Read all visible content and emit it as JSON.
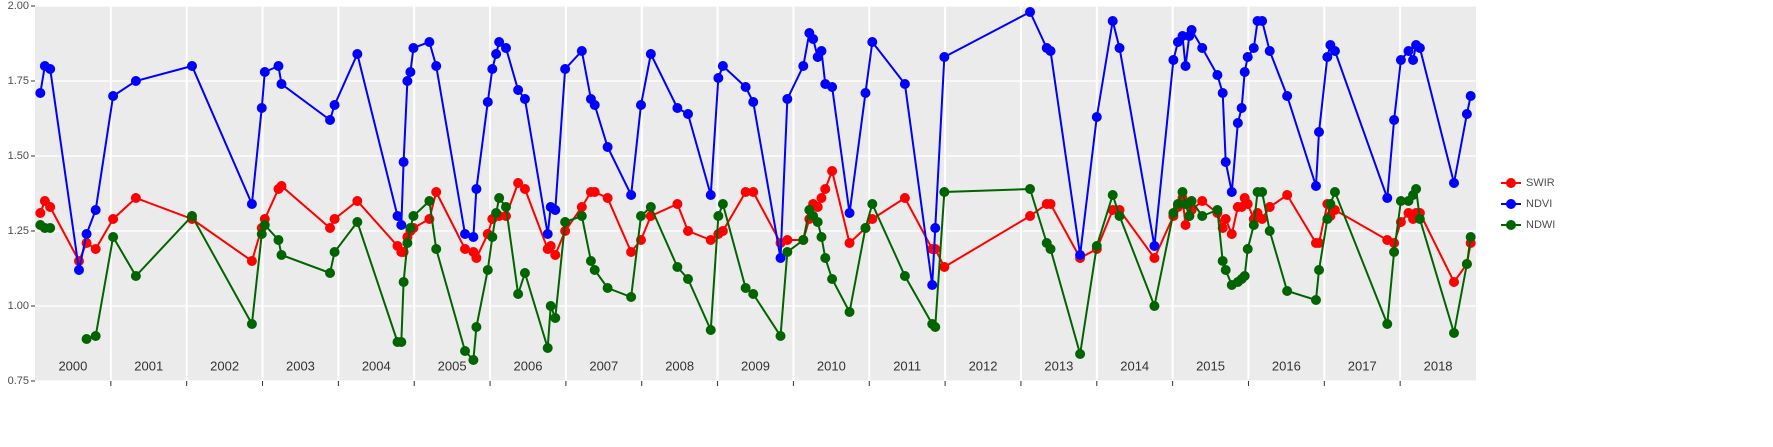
{
  "chart_data": {
    "type": "line",
    "x": [
      2000.07,
      2000.13,
      2000.2,
      2000.58,
      2000.68,
      2000.8,
      2001.03,
      2001.33,
      2002.07,
      2002.86,
      2002.99,
      2003.03,
      2003.21,
      2003.25,
      2003.89,
      2003.95,
      2004.25,
      2004.78,
      2004.83,
      2004.86,
      2004.91,
      2004.95,
      2004.99,
      2005.2,
      2005.29,
      2005.67,
      2005.78,
      2005.82,
      2005.97,
      2006.03,
      2006.08,
      2006.12,
      2006.21,
      2006.37,
      2006.46,
      2006.76,
      2006.8,
      2006.86,
      2006.99,
      2007.21,
      2007.33,
      2007.38,
      2007.55,
      2007.86,
      2007.99,
      2008.12,
      2008.47,
      2008.61,
      2008.91,
      2009.01,
      2009.07,
      2009.37,
      2009.47,
      2009.83,
      2009.92,
      2010.13,
      2010.21,
      2010.26,
      2010.32,
      2010.37,
      2010.42,
      2010.51,
      2010.74,
      2010.95,
      2011.04,
      2011.47,
      2011.83,
      2011.87,
      2011.99,
      2013.12,
      2013.34,
      2013.39,
      2013.78,
      2014.0,
      2014.21,
      2014.3,
      2014.76,
      2015.01,
      2015.07,
      2015.13,
      2015.17,
      2015.22,
      2015.25,
      2015.39,
      2015.59,
      2015.66,
      2015.7,
      2015.78,
      2015.86,
      2015.91,
      2015.95,
      2015.99,
      2016.07,
      2016.12,
      2016.18,
      2016.28,
      2016.51,
      2016.89,
      2016.93,
      2017.04,
      2017.08,
      2017.14,
      2017.83,
      2017.92,
      2018.01,
      2018.11,
      2018.17,
      2018.21,
      2018.26,
      2018.71,
      2018.88,
      2018.93
    ],
    "series": [
      {
        "name": "SWIR",
        "color": "#ff0000",
        "values": [
          1.31,
          1.35,
          1.33,
          1.15,
          1.21,
          1.19,
          1.29,
          1.36,
          1.29,
          1.15,
          1.26,
          1.29,
          1.39,
          1.4,
          1.26,
          1.29,
          1.35,
          1.2,
          1.18,
          1.18,
          1.23,
          1.25,
          1.26,
          1.29,
          1.38,
          1.19,
          1.18,
          1.16,
          1.24,
          1.29,
          1.3,
          1.3,
          1.3,
          1.41,
          1.39,
          1.19,
          1.2,
          1.17,
          1.25,
          1.33,
          1.38,
          1.38,
          1.36,
          1.18,
          1.22,
          1.3,
          1.34,
          1.25,
          1.22,
          1.24,
          1.25,
          1.38,
          1.38,
          1.21,
          1.22,
          1.22,
          1.29,
          1.34,
          1.33,
          1.36,
          1.39,
          1.45,
          1.21,
          1.26,
          1.29,
          1.36,
          1.19,
          1.19,
          1.13,
          1.3,
          1.34,
          1.34,
          1.16,
          1.19,
          1.32,
          1.32,
          1.16,
          1.3,
          1.33,
          1.36,
          1.27,
          1.3,
          1.32,
          1.35,
          1.31,
          1.26,
          1.29,
          1.24,
          1.33,
          1.33,
          1.36,
          1.34,
          1.29,
          1.31,
          1.29,
          1.33,
          1.37,
          1.21,
          1.21,
          1.34,
          1.3,
          1.32,
          1.22,
          1.21,
          1.28,
          1.31,
          1.29,
          1.31,
          1.31,
          1.08,
          1.14,
          1.21
        ]
      },
      {
        "name": "NDVI",
        "color": "#0000ff",
        "values": [
          1.71,
          1.8,
          1.79,
          1.12,
          1.24,
          1.32,
          1.7,
          1.75,
          1.8,
          1.34,
          1.66,
          1.78,
          1.8,
          1.74,
          1.62,
          1.67,
          1.84,
          1.3,
          1.27,
          1.48,
          1.75,
          1.78,
          1.86,
          1.88,
          1.8,
          1.24,
          1.23,
          1.39,
          1.68,
          1.79,
          1.84,
          1.88,
          1.86,
          1.72,
          1.69,
          1.24,
          1.33,
          1.32,
          1.79,
          1.85,
          1.69,
          1.67,
          1.53,
          1.37,
          1.67,
          1.84,
          1.66,
          1.64,
          1.37,
          1.76,
          1.8,
          1.73,
          1.68,
          1.16,
          1.69,
          1.8,
          1.91,
          1.89,
          1.83,
          1.85,
          1.74,
          1.73,
          1.31,
          1.71,
          1.88,
          1.74,
          1.07,
          1.26,
          1.83,
          1.98,
          1.86,
          1.85,
          1.17,
          1.63,
          1.95,
          1.86,
          1.2,
          1.82,
          1.88,
          1.9,
          1.8,
          1.9,
          1.92,
          1.86,
          1.77,
          1.71,
          1.48,
          1.38,
          1.61,
          1.66,
          1.78,
          1.83,
          1.86,
          1.95,
          1.95,
          1.85,
          1.7,
          1.4,
          1.58,
          1.83,
          1.87,
          1.85,
          1.36,
          1.62,
          1.82,
          1.85,
          1.82,
          1.87,
          1.86,
          1.41,
          1.64,
          1.7
        ]
      },
      {
        "name": "NDWI",
        "color": "#006400",
        "values": [
          1.27,
          1.26,
          1.26,
          null,
          0.89,
          0.9,
          1.23,
          1.1,
          1.3,
          0.94,
          1.24,
          1.27,
          1.22,
          1.17,
          1.11,
          1.18,
          1.28,
          0.88,
          0.88,
          1.08,
          1.21,
          1.26,
          1.3,
          1.35,
          1.19,
          0.85,
          0.82,
          0.93,
          1.12,
          1.23,
          1.31,
          1.36,
          1.33,
          1.04,
          1.11,
          0.86,
          1.0,
          0.96,
          1.28,
          1.3,
          1.15,
          1.12,
          1.06,
          1.03,
          1.3,
          1.33,
          1.13,
          1.09,
          0.92,
          1.3,
          1.34,
          1.06,
          1.04,
          0.9,
          1.18,
          1.22,
          1.32,
          1.3,
          1.28,
          1.23,
          1.16,
          1.09,
          0.98,
          1.26,
          1.34,
          1.1,
          0.94,
          0.93,
          1.38,
          1.39,
          1.21,
          1.19,
          0.84,
          1.2,
          1.37,
          1.3,
          1.0,
          1.31,
          1.34,
          1.38,
          1.34,
          1.3,
          1.35,
          1.3,
          1.32,
          1.15,
          1.12,
          1.07,
          1.08,
          1.09,
          1.1,
          1.19,
          1.27,
          1.38,
          1.38,
          1.25,
          1.05,
          1.02,
          1.12,
          1.29,
          1.34,
          1.38,
          0.94,
          1.18,
          1.35,
          1.35,
          1.37,
          1.39,
          1.29,
          0.91,
          1.14,
          1.23
        ]
      }
    ],
    "xlim": [
      2000,
      2019
    ],
    "xticks": [
      2001,
      2002,
      2003,
      2004,
      2005,
      2006,
      2007,
      2008,
      2009,
      2010,
      2011,
      2012,
      2013,
      2014,
      2015,
      2016,
      2017,
      2018
    ],
    "year_labels": [
      "2000",
      "2001",
      "2002",
      "2003",
      "2004",
      "2005",
      "2006",
      "2007",
      "2008",
      "2009",
      "2010",
      "2011",
      "2012",
      "2013",
      "2014",
      "2015",
      "2016",
      "2017",
      "2018"
    ],
    "ylim": [
      0.75,
      2.0
    ],
    "yticks": [
      0.75,
      {
        "value": 1,
        "label": "1.00"
      },
      1.25,
      {
        "value": 1.5,
        "label": "1.50"
      },
      1.75,
      {
        "value": 2,
        "label": "2.00"
      }
    ],
    "grid": true
  }
}
